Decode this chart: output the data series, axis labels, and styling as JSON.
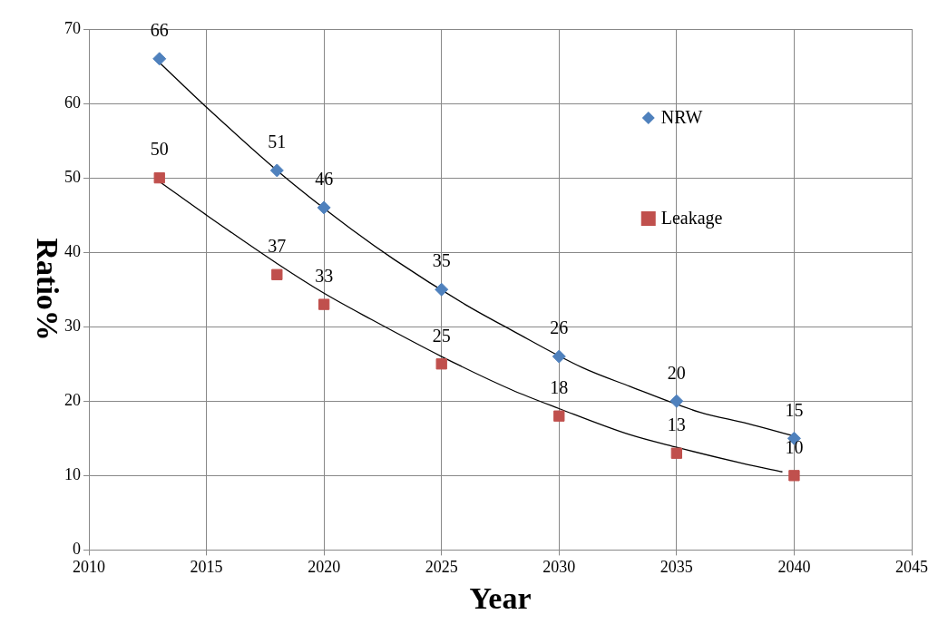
{
  "chart_data": {
    "type": "scatter",
    "xlabel": "Year",
    "ylabel": "Ratio%",
    "xlim": [
      2010,
      2045
    ],
    "xticks": [
      2010,
      2015,
      2020,
      2025,
      2030,
      2035,
      2040,
      2045
    ],
    "ylim": [
      0,
      70
    ],
    "yticks": [
      0,
      10,
      20,
      30,
      40,
      50,
      60,
      70
    ],
    "grid": true,
    "legend": "top right",
    "series": [
      {
        "name": "NRW",
        "color": "#4f81bd",
        "marker": "diamond",
        "x": [
          2013,
          2018,
          2020,
          2025,
          2030,
          2035,
          2040
        ],
        "values": [
          66,
          51,
          46,
          35,
          26,
          20,
          15
        ],
        "value_labels": [
          "66",
          "51",
          "46",
          "35",
          "26",
          "20",
          "15"
        ]
      },
      {
        "name": "Leakage",
        "color": "#c0504d",
        "marker": "square",
        "x": [
          2013,
          2018,
          2020,
          2025,
          2030,
          2035,
          2040
        ],
        "values": [
          50,
          37,
          33,
          25,
          18,
          13,
          10
        ],
        "value_labels": [
          "50",
          "37",
          "33",
          "25",
          "18",
          "13",
          "10"
        ]
      },
      {
        "type": "line",
        "color": "#000000",
        "marker": "none",
        "x": [
          2013,
          2015,
          2018,
          2021,
          2023,
          2026,
          2028,
          2031,
          2033,
          2036,
          2038,
          2040
        ],
        "values": [
          65.5,
          59.5,
          51,
          43.5,
          39,
          33,
          29.5,
          24.5,
          22,
          18.5,
          17,
          15.3
        ]
      },
      {
        "type": "line",
        "color": "#000000",
        "marker": "none",
        "x": [
          2013,
          2015,
          2018,
          2020,
          2022,
          2025,
          2028,
          2030,
          2033,
          2035,
          2038,
          2039.5
        ],
        "values": [
          49.5,
          45,
          38.5,
          34.5,
          31,
          26,
          21.5,
          19,
          15.5,
          13.8,
          11.5,
          10.5
        ]
      }
    ]
  }
}
